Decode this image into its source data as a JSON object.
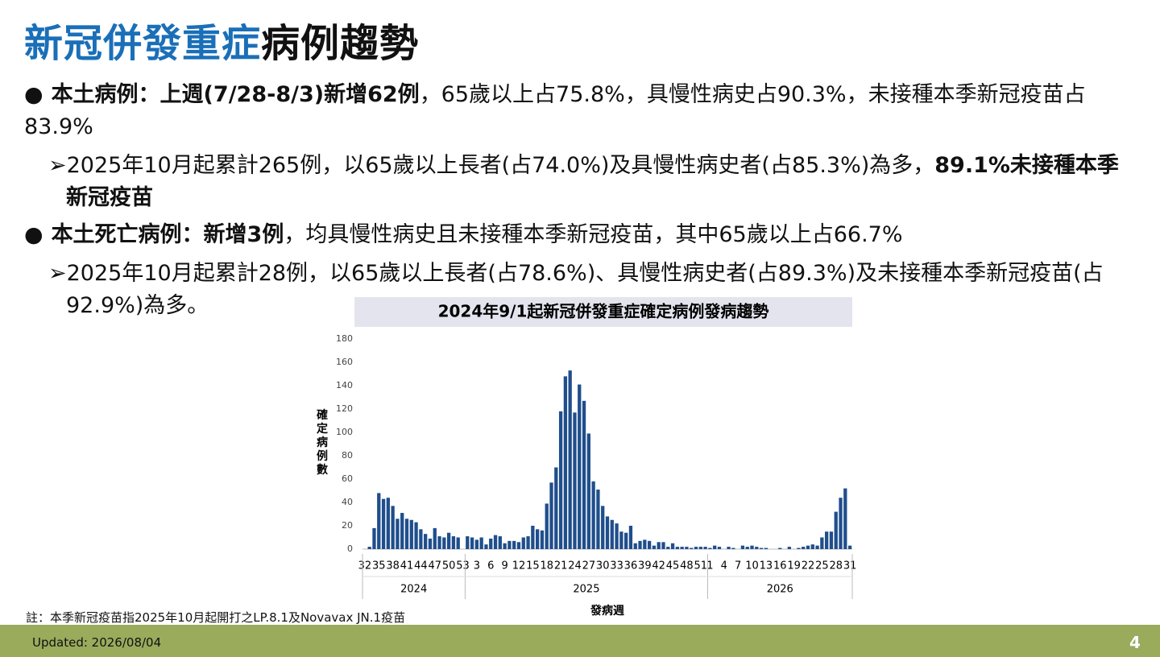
{
  "title": {
    "part1": "新冠併發重症",
    "part2": "病例趨勢"
  },
  "bullets": [
    {
      "bold": "本土病例：上週(7/28-8/3)新增62例",
      "text": "，65歲以上占75.8%，具慢性病史占90.3%，未接種本季新冠疫苗占83.9%",
      "sub": {
        "text": "2025年10月起累計265例，以65歲以上長者(占74.0%)及具慢性病史者(占85.3%)為多，",
        "bold": "89.1%未接種本季新冠疫苗"
      }
    },
    {
      "bold": "本土死亡病例：新增3例",
      "text": "，均具慢性病史且未接種本季新冠疫苗，其中65歲以上占66.7%",
      "sub": {
        "text": "2025年10月起累計28例，以65歲以上長者(占78.6%)、具慢性病史者(占89.3%)及未接種本季新冠疫苗(占92.9%)為多。"
      }
    }
  ],
  "chart_data": {
    "type": "bar",
    "title": "2024年9/1起新冠併發重症確定病例發病趨勢",
    "y_label": "確定病例數",
    "x_label": "發病週",
    "color": "#1f4e8c",
    "years": [
      "2024",
      "2025",
      "2026"
    ],
    "categories": [
      "32",
      null,
      null,
      "35",
      null,
      null,
      "38",
      null,
      null,
      "41",
      null,
      null,
      "44",
      null,
      null,
      "47",
      null,
      null,
      "50",
      null,
      null,
      "53",
      null,
      null,
      "3",
      null,
      null,
      "6",
      null,
      null,
      "9",
      null,
      null,
      "12",
      null,
      null,
      "15",
      null,
      null,
      "18",
      null,
      null,
      "21",
      null,
      null,
      "24",
      null,
      null,
      "27",
      null,
      null,
      "30",
      null,
      null,
      "33",
      null,
      null,
      "36",
      null,
      null,
      "39",
      null,
      null,
      "42",
      null,
      null,
      "45",
      null,
      null,
      "48",
      null,
      null,
      "51",
      null,
      "1",
      null,
      null,
      "4",
      null,
      null,
      "7",
      null,
      null,
      "10",
      null,
      null,
      "13",
      null,
      null,
      "16",
      null,
      null,
      "19",
      null,
      null,
      "22",
      null,
      null,
      "25",
      null,
      null,
      "28",
      null,
      null,
      "31"
    ],
    "values": [
      0,
      2,
      18,
      48,
      43,
      44,
      37,
      26,
      31,
      26,
      25,
      23,
      17,
      13,
      9,
      18,
      11,
      10,
      14,
      11,
      10,
      0,
      11,
      10,
      8,
      10,
      4,
      9,
      12,
      11,
      5,
      7,
      7,
      6,
      10,
      11,
      20,
      17,
      16,
      39,
      57,
      70,
      118,
      148,
      153,
      117,
      141,
      127,
      99,
      58,
      51,
      37,
      28,
      25,
      22,
      15,
      14,
      20,
      5,
      7,
      8,
      7,
      3,
      6,
      6,
      2,
      5,
      2,
      2,
      2,
      1,
      2,
      2,
      2,
      1,
      3,
      2,
      0,
      2,
      1,
      0,
      3,
      2,
      3,
      2,
      1,
      1,
      0,
      0,
      1,
      0,
      2,
      0,
      1,
      2,
      3,
      4,
      3,
      10,
      15,
      15,
      32,
      44,
      52,
      3
    ],
    "ylim": [
      0,
      180
    ],
    "yticks": [
      0,
      20,
      40,
      60,
      80,
      100,
      120,
      140,
      160,
      180
    ]
  },
  "note": "註：本季新冠疫苗指2025年10月起開打之LP.8.1及Novavax JN.1疫苗",
  "footer": {
    "updated": "Updated: 2026/08/04",
    "page": "4"
  }
}
